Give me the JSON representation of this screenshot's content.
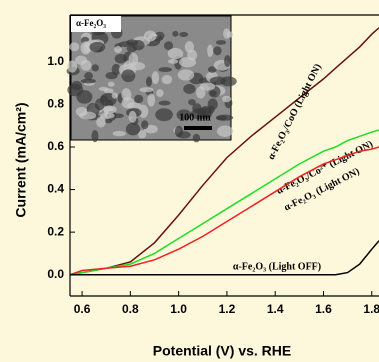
{
  "chart_data": {
    "type": "line",
    "x_label": "Potential (V) vs. RHE",
    "y_label": "Current (mA/cm²)",
    "inset_label": "α-Fe₂O₃",
    "inset_scale": "100 nm",
    "x": [
      0.55,
      0.6,
      0.7,
      0.8,
      0.9,
      1.0,
      1.1,
      1.2,
      1.3,
      1.4,
      1.5,
      1.6,
      1.65,
      1.7,
      1.75,
      1.8,
      1.83
    ],
    "series": [
      {
        "name": "α-Fe₂O₃/CoO (Light ON)",
        "color": "#6b1010",
        "values": [
          0.0,
          0.01,
          0.03,
          0.06,
          0.15,
          0.28,
          0.42,
          0.55,
          0.65,
          0.74,
          0.83,
          0.92,
          0.97,
          1.02,
          1.07,
          1.13,
          1.16
        ]
      },
      {
        "name": "α-Fe₂O₃/Co²⁺ (Light ON)",
        "color": "#22dd22",
        "values": [
          0.0,
          0.01,
          0.03,
          0.05,
          0.1,
          0.17,
          0.24,
          0.31,
          0.38,
          0.45,
          0.52,
          0.58,
          0.6,
          0.63,
          0.65,
          0.67,
          0.68
        ]
      },
      {
        "name": "α-Fe₂O₃ (Light ON)",
        "color": "#ee2222",
        "values": [
          0.0,
          0.02,
          0.03,
          0.04,
          0.07,
          0.12,
          0.18,
          0.25,
          0.32,
          0.39,
          0.46,
          0.52,
          0.54,
          0.56,
          0.58,
          0.59,
          0.6
        ]
      },
      {
        "name": "α-Fe₂O₃ (Light OFF)",
        "color": "#000000",
        "values": [
          0.0,
          0.0,
          0.0,
          0.0,
          0.0,
          0.0,
          0.0,
          0.0,
          0.0,
          0.0,
          0.0,
          0.0,
          0.0,
          0.01,
          0.05,
          0.12,
          0.16
        ]
      }
    ],
    "xlim": [
      0.55,
      1.83
    ],
    "ylim": [
      -0.1,
      1.22
    ],
    "xticks": [
      0.6,
      0.8,
      {
        "value": 1,
        "label": "1.0"
      },
      1.2,
      1.4,
      1.6,
      1.8
    ],
    "yticks": [
      {
        "value": 0,
        "label": "0.0"
      },
      0.2,
      0.4,
      0.6,
      0.8,
      {
        "value": 1,
        "label": "1.0"
      }
    ]
  }
}
